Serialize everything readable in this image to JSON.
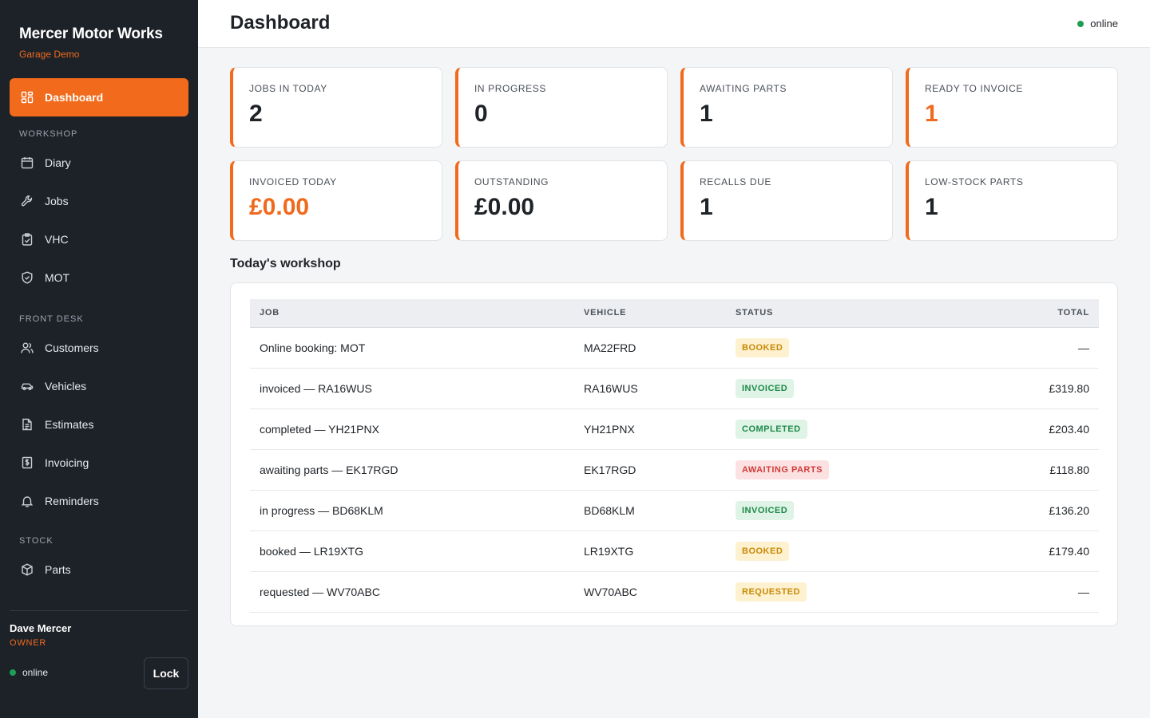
{
  "brand": {
    "name": "Mercer Motor Works",
    "subtitle": "Garage Demo"
  },
  "sidebar": {
    "dashboard": {
      "label": "Dashboard",
      "icon": "dashboard-icon"
    },
    "sections": {
      "workshop": "WORKSHOP",
      "front_desk": "FRONT DESK",
      "stock": "STOCK"
    },
    "workshop_items": [
      {
        "label": "Diary",
        "icon": "calendar-icon"
      },
      {
        "label": "Jobs",
        "icon": "wrench-icon"
      },
      {
        "label": "VHC",
        "icon": "clipboard-check-icon"
      },
      {
        "label": "MOT",
        "icon": "shield-check-icon"
      }
    ],
    "front_desk_items": [
      {
        "label": "Customers",
        "icon": "users-icon"
      },
      {
        "label": "Vehicles",
        "icon": "car-icon"
      },
      {
        "label": "Estimates",
        "icon": "document-icon"
      },
      {
        "label": "Invoicing",
        "icon": "receipt-icon"
      },
      {
        "label": "Reminders",
        "icon": "bell-icon"
      }
    ],
    "stock_items": [
      {
        "label": "Parts",
        "icon": "box-icon"
      }
    ],
    "user": {
      "name": "Dave Mercer",
      "role": "OWNER"
    },
    "status": "online",
    "lock_label": "Lock"
  },
  "header": {
    "title": "Dashboard",
    "status": "online"
  },
  "stats": [
    {
      "label": "JOBS IN TODAY",
      "value": "2"
    },
    {
      "label": "IN PROGRESS",
      "value": "0"
    },
    {
      "label": "AWAITING PARTS",
      "value": "1"
    },
    {
      "label": "READY TO INVOICE",
      "value": "1"
    },
    {
      "label": "INVOICED TODAY",
      "value": "£0.00"
    },
    {
      "label": "OUTSTANDING",
      "value": "£0.00"
    },
    {
      "label": "RECALLS DUE",
      "value": "1"
    },
    {
      "label": "LOW-STOCK PARTS",
      "value": "1"
    }
  ],
  "workshop": {
    "title": "Today's workshop",
    "columns": {
      "job": "JOB",
      "vehicle": "VEHICLE",
      "status": "STATUS",
      "total": "TOTAL"
    },
    "rows": [
      {
        "job": "Online booking: MOT",
        "vehicle": "MA22FRD",
        "status": "BOOKED",
        "total": "—"
      },
      {
        "job": "invoiced — RA16WUS",
        "vehicle": "RA16WUS",
        "status": "INVOICED",
        "total": "£319.80"
      },
      {
        "job": "completed — YH21PNX",
        "vehicle": "YH21PNX",
        "status": "COMPLETED",
        "total": "£203.40"
      },
      {
        "job": "awaiting parts — EK17RGD",
        "vehicle": "EK17RGD",
        "status": "AWAITING PARTS",
        "total": "£118.80"
      },
      {
        "job": "in progress — BD68KLM",
        "vehicle": "BD68KLM",
        "status": "INVOICED",
        "total": "£136.20"
      },
      {
        "job": "booked — LR19XTG",
        "vehicle": "LR19XTG",
        "status": "BOOKED",
        "total": "£179.40"
      },
      {
        "job": "requested — WV70ABC",
        "vehicle": "WV70ABC",
        "status": "REQUESTED",
        "total": "—"
      }
    ]
  },
  "colors": {
    "accent": "#f26a1b",
    "sidebar_bg": "#1d2229",
    "online": "#1f9d55"
  }
}
